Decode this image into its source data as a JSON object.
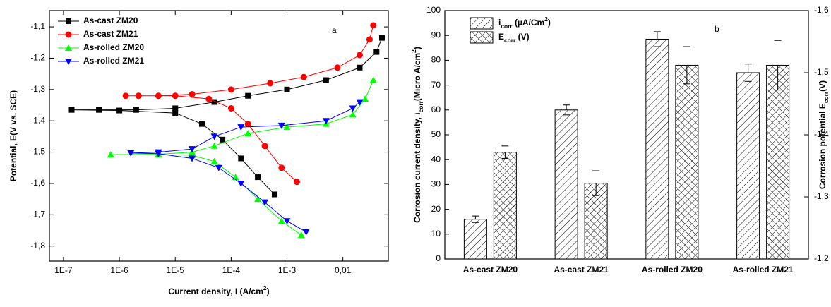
{
  "chart_data": [
    {
      "type": "line",
      "annotation": "a",
      "xlabel": [
        {
          "text": "Current density, I (A/cm"
        },
        {
          "text": "2",
          "sup": true
        },
        {
          "text": ")"
        }
      ],
      "ylabel": "Potential, E(V vs. SCE)",
      "xscale": "log",
      "xlim": [
        5.6e-08,
        0.065
      ],
      "ylim": [
        -1.848,
        -1.048
      ],
      "xticks": [
        {
          "value": 1e-07,
          "label": "1E-7"
        },
        {
          "value": 1e-06,
          "label": "1E-6"
        },
        {
          "value": 1e-05,
          "label": "1E-5"
        },
        {
          "value": 0.0001,
          "label": "1E-4"
        },
        {
          "value": 0.001,
          "label": "1E-3"
        },
        {
          "value": 0.01,
          "label": "0,01"
        }
      ],
      "yticks": [
        {
          "value": -1.8,
          "label": "-1,8"
        },
        {
          "value": -1.7,
          "label": "-1,7"
        },
        {
          "value": -1.6,
          "label": "-1,6"
        },
        {
          "value": -1.5,
          "label": "-1,5"
        },
        {
          "value": -1.4,
          "label": "-1,4"
        },
        {
          "value": -1.3,
          "label": "-1,3"
        },
        {
          "value": -1.2,
          "label": "-1,2"
        },
        {
          "value": -1.1,
          "label": "-1,1"
        }
      ],
      "legend": "upper left",
      "series": [
        {
          "name": "As-cast ZM20",
          "color": "#000000",
          "marker": "square",
          "x": [
            0.0006,
            0.0003,
            0.00015,
            7e-05,
            3e-05,
            1e-05,
            1e-06,
            1.4e-07,
            4.3e-07,
            2e-06,
            1e-05,
            5e-05,
            0.0002,
            0.001,
            0.005,
            0.02,
            0.04,
            0.05
          ],
          "values": [
            -1.635,
            -1.58,
            -1.52,
            -1.46,
            -1.41,
            -1.375,
            -1.367,
            -1.365,
            -1.365,
            -1.365,
            -1.36,
            -1.34,
            -1.32,
            -1.3,
            -1.27,
            -1.23,
            -1.18,
            -1.135
          ]
        },
        {
          "name": "As-cast ZM21",
          "color": "#ff0000",
          "marker": "circle",
          "x": [
            0.0015,
            0.0008,
            0.0004,
            0.0002,
            0.0001,
            4e-05,
            1e-05,
            1.3e-06,
            2.2e-06,
            5e-06,
            2e-05,
            0.0001,
            0.0005,
            0.002,
            0.008,
            0.02,
            0.03,
            0.035
          ],
          "values": [
            -1.595,
            -1.55,
            -1.48,
            -1.41,
            -1.36,
            -1.33,
            -1.32,
            -1.32,
            -1.32,
            -1.32,
            -1.315,
            -1.3,
            -1.28,
            -1.26,
            -1.23,
            -1.19,
            -1.14,
            -1.095
          ]
        },
        {
          "name": "As-rolled ZM20",
          "color": "#00ff00",
          "marker": "triangle-up",
          "x": [
            0.0018,
            0.0008,
            0.0003,
            0.00012,
            5e-05,
            2e-05,
            5e-06,
            7e-07,
            5e-06,
            2e-05,
            5e-05,
            0.0002,
            0.001,
            0.005,
            0.015,
            0.025,
            0.035
          ],
          "values": [
            -1.765,
            -1.72,
            -1.65,
            -1.58,
            -1.53,
            -1.51,
            -1.508,
            -1.508,
            -1.507,
            -1.5,
            -1.48,
            -1.44,
            -1.42,
            -1.41,
            -1.38,
            -1.33,
            -1.27
          ]
        },
        {
          "name": "As-rolled ZM21",
          "color": "#0000ff",
          "marker": "triangle-down",
          "x": [
            0.0022,
            0.001,
            0.0004,
            0.00015,
            6e-05,
            2e-05,
            5e-06,
            1.6e-06,
            5e-06,
            2e-05,
            5e-05,
            0.00015,
            0.0008,
            0.005,
            0.015,
            0.02
          ],
          "values": [
            -1.755,
            -1.72,
            -1.66,
            -1.6,
            -1.55,
            -1.52,
            -1.505,
            -1.503,
            -1.5,
            -1.49,
            -1.45,
            -1.42,
            -1.415,
            -1.4,
            -1.36,
            -1.34
          ]
        }
      ]
    },
    {
      "type": "bar",
      "annotation": "b",
      "categories": [
        "As-cast ZM20",
        "As-cast ZM21",
        "As-rolled ZM20",
        "As-rolled ZM21"
      ],
      "ylabel": [
        {
          "text": "Corrosion current density, i"
        },
        {
          "text": "corr",
          "sub": true
        },
        {
          "text": "(Micro A/cm"
        },
        {
          "text": "2",
          "sup": true
        },
        {
          "text": ")"
        }
      ],
      "y2label": [
        {
          "text": "Corrosion potential E"
        },
        {
          "text": "corr",
          "sub": true
        },
        {
          "text": "(V)"
        }
      ],
      "ylim": [
        0,
        100
      ],
      "yticks": [
        0,
        10,
        20,
        30,
        40,
        50,
        60,
        70,
        80,
        90,
        100
      ],
      "y2lim": [
        -1.2,
        -1.6
      ],
      "y2ticks": [
        {
          "value": -1.2,
          "label": "-1,2"
        },
        {
          "value": -1.3,
          "label": "-1,3"
        },
        {
          "value": -1.4,
          "label": "-1,4"
        },
        {
          "value": -1.5,
          "label": "-1,5"
        },
        {
          "value": -1.6,
          "label": "-1,6"
        }
      ],
      "legend": "upper left",
      "series": [
        {
          "name": [
            {
              "text": "i"
            },
            {
              "text": "corr",
              "sub": true
            },
            {
              "text": " (µA/Cm"
            },
            {
              "text": "2",
              "sup": true
            },
            {
              "text": ")"
            }
          ],
          "color": "#000000",
          "hatch": "diagonal",
          "values": [
            16,
            60,
            88.5,
            75
          ],
          "errors": [
            1.3,
            2,
            3,
            3.5
          ]
        },
        {
          "name": [
            {
              "text": "E"
            },
            {
              "text": "corr",
              "sub": true
            },
            {
              "text": " (V)"
            }
          ],
          "color": "#000000",
          "hatch": "cross",
          "axis": "y2",
          "values": [
            -1.372,
            -1.322,
            -1.512,
            -1.512
          ],
          "errors": [
            0.01,
            0.02,
            0.03,
            0.04
          ]
        }
      ]
    }
  ]
}
